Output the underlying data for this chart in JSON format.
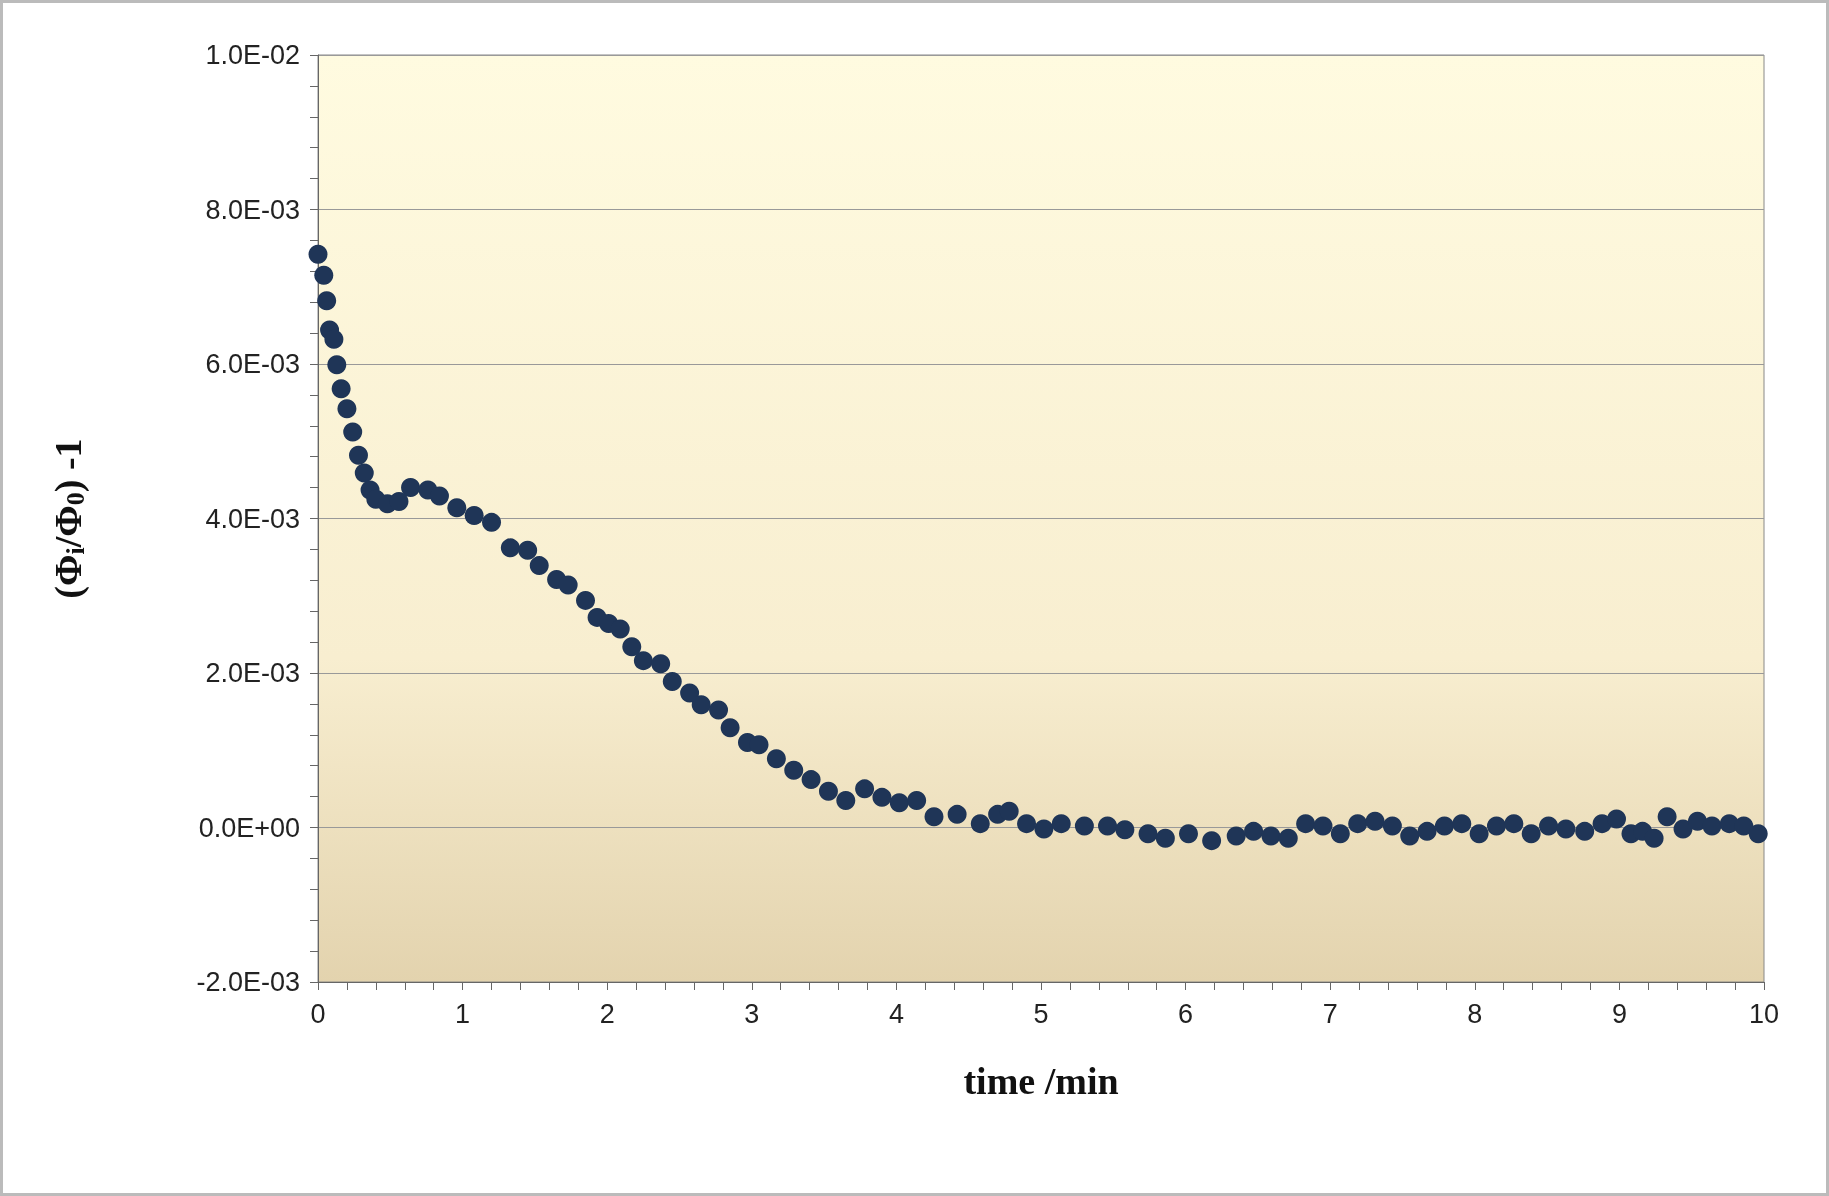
{
  "chart_data": {
    "type": "scatter",
    "xlabel": "time /min",
    "ylabel": "(Φ$_{i}$/Φ$_{0}$) -1",
    "x": [
      0,
      0.04,
      0.06,
      0.08,
      0.11,
      0.13,
      0.16,
      0.2,
      0.24,
      0.28,
      0.32,
      0.36,
      0.4,
      0.48,
      0.56,
      0.64,
      0.76,
      0.84,
      0.96,
      1.08,
      1.2,
      1.33,
      1.45,
      1.53,
      1.65,
      1.73,
      1.85,
      1.93,
      2.01,
      2.09,
      2.17,
      2.25,
      2.37,
      2.45,
      2.57,
      2.65,
      2.77,
      2.85,
      2.97,
      3.05,
      3.17,
      3.29,
      3.41,
      3.53,
      3.65,
      3.78,
      3.9,
      4.02,
      4.14,
      4.26,
      4.42,
      4.58,
      4.7,
      4.78,
      4.9,
      5.02,
      5.14,
      5.3,
      5.46,
      5.58,
      5.74,
      5.86,
      6.02,
      6.18,
      6.35,
      6.47,
      6.59,
      6.71,
      6.83,
      6.95,
      7.07,
      7.19,
      7.31,
      7.43,
      7.55,
      7.67,
      7.79,
      7.91,
      8.03,
      8.15,
      8.27,
      8.39,
      8.51,
      8.63,
      8.76,
      8.88,
      8.98,
      9.08,
      9.16,
      9.24,
      9.33,
      9.44,
      9.54,
      9.64,
      9.76,
      9.86,
      9.96
    ],
    "series": [
      {
        "color": "#1f3557",
        "values": [
          0.00742,
          0.00715,
          0.00682,
          0.00644,
          0.00632,
          0.00599,
          0.00568,
          0.00542,
          0.00512,
          0.00482,
          0.00459,
          0.00437,
          0.00425,
          0.00419,
          0.00422,
          0.0044,
          0.00437,
          0.00429,
          0.00414,
          0.00404,
          0.00395,
          0.00362,
          0.00359,
          0.00339,
          0.00321,
          0.00314,
          0.00294,
          0.00272,
          0.00264,
          0.00257,
          0.00234,
          0.00216,
          0.00212,
          0.00189,
          0.00174,
          0.00159,
          0.00152,
          0.00129,
          0.0011,
          0.00107,
          0.00089,
          0.00074,
          0.00062,
          0.00047,
          0.00035,
          0.0005,
          0.00039,
          0.00032,
          0.00035,
          0.00014,
          0.00017,
          5e-05,
          0.00017,
          0.00021,
          5e-05,
          -2e-05,
          5e-05,
          2e-05,
          2e-05,
          -3e-05,
          -8e-05,
          -0.00014,
          -8e-05,
          -0.00017,
          -0.00011,
          -5e-05,
          -0.00011,
          -0.00014,
          5e-05,
          2e-05,
          -8e-05,
          5e-05,
          8e-05,
          2e-05,
          -0.00011,
          -5e-05,
          2e-05,
          5e-05,
          -8e-05,
          2e-05,
          5e-05,
          -8e-05,
          2e-05,
          -2e-05,
          -5e-05,
          5e-05,
          0.00011,
          -8e-05,
          -5e-05,
          -0.00014,
          0.00014,
          -2e-05,
          8e-05,
          2e-05,
          5e-05,
          2e-05,
          -8e-05
        ]
      }
    ],
    "xlim": [
      0,
      10
    ],
    "xticks": [
      0,
      {
        "value": 0.2,
        "label": null
      },
      {
        "value": 0.4,
        "label": null
      },
      {
        "value": 0.6,
        "label": null
      },
      {
        "value": 0.8,
        "label": null
      },
      1,
      {
        "value": 1.2,
        "label": null
      },
      {
        "value": 1.4,
        "label": null
      },
      {
        "value": 1.6,
        "label": null
      },
      {
        "value": 1.8,
        "label": null
      },
      2,
      {
        "value": 2.2,
        "label": null
      },
      {
        "value": 2.4,
        "label": null
      },
      {
        "value": 2.6,
        "label": null
      },
      {
        "value": 2.8,
        "label": null
      },
      3,
      {
        "value": 3.2,
        "label": null
      },
      {
        "value": 3.4,
        "label": null
      },
      {
        "value": 3.6,
        "label": null
      },
      {
        "value": 3.8,
        "label": null
      },
      4,
      {
        "value": 4.2,
        "label": null
      },
      {
        "value": 4.4,
        "label": null
      },
      {
        "value": 4.6,
        "label": null
      },
      {
        "value": 4.8,
        "label": null
      },
      5,
      {
        "value": 5.2,
        "label": null
      },
      {
        "value": 5.4,
        "label": null
      },
      {
        "value": 5.6,
        "label": null
      },
      {
        "value": 5.8,
        "label": null
      },
      6,
      {
        "value": 6.2,
        "label": null
      },
      {
        "value": 6.4,
        "label": null
      },
      {
        "value": 6.6,
        "label": null
      },
      {
        "value": 6.8,
        "label": null
      },
      7,
      {
        "value": 7.2,
        "label": null
      },
      {
        "value": 7.4,
        "label": null
      },
      {
        "value": 7.6,
        "label": null
      },
      {
        "value": 7.8,
        "label": null
      },
      8,
      {
        "value": 8.2,
        "label": null
      },
      {
        "value": 8.4,
        "label": null
      },
      {
        "value": 8.6,
        "label": null
      },
      {
        "value": 8.8,
        "label": null
      },
      9,
      {
        "value": 9.2,
        "label": null
      },
      {
        "value": 9.4,
        "label": null
      },
      {
        "value": 9.6,
        "label": null
      },
      {
        "value": 9.8,
        "label": null
      },
      10
    ],
    "ylim": [
      -0.002,
      0.01
    ],
    "yticks": [
      {
        "value": -0.002,
        "label": "-2.0E-03"
      },
      {
        "value": -0.0016,
        "label": null
      },
      {
        "value": -0.0012,
        "label": null
      },
      {
        "value": -0.0008,
        "label": null
      },
      {
        "value": -0.0004,
        "label": null
      },
      {
        "value": 0,
        "label": "0.0E+00"
      },
      {
        "value": 0.0004,
        "label": null
      },
      {
        "value": 0.0008,
        "label": null
      },
      {
        "value": 0.0012,
        "label": null
      },
      {
        "value": 0.0016,
        "label": null
      },
      {
        "value": 0.002,
        "label": "2.0E-03"
      },
      {
        "value": 0.0024,
        "label": null
      },
      {
        "value": 0.0028,
        "label": null
      },
      {
        "value": 0.0032,
        "label": null
      },
      {
        "value": 0.0036,
        "label": null
      },
      {
        "value": 0.004,
        "label": "4.0E-03"
      },
      {
        "value": 0.0044,
        "label": null
      },
      {
        "value": 0.0048,
        "label": null
      },
      {
        "value": 0.0052,
        "label": null
      },
      {
        "value": 0.0056,
        "label": null
      },
      {
        "value": 0.006,
        "label": "6.0E-03"
      },
      {
        "value": 0.0064,
        "label": null
      },
      {
        "value": 0.0068,
        "label": null
      },
      {
        "value": 0.0072,
        "label": null
      },
      {
        "value": 0.0076,
        "label": null
      },
      {
        "value": 0.008,
        "label": "8.0E-03"
      },
      {
        "value": 0.0084,
        "label": null
      },
      {
        "value": 0.0088,
        "label": null
      },
      {
        "value": 0.0092,
        "label": null
      },
      {
        "value": 0.0096,
        "label": null
      },
      {
        "value": 0.01,
        "label": "1.0E-02"
      }
    ],
    "grid": "y",
    "marker": "circle"
  }
}
